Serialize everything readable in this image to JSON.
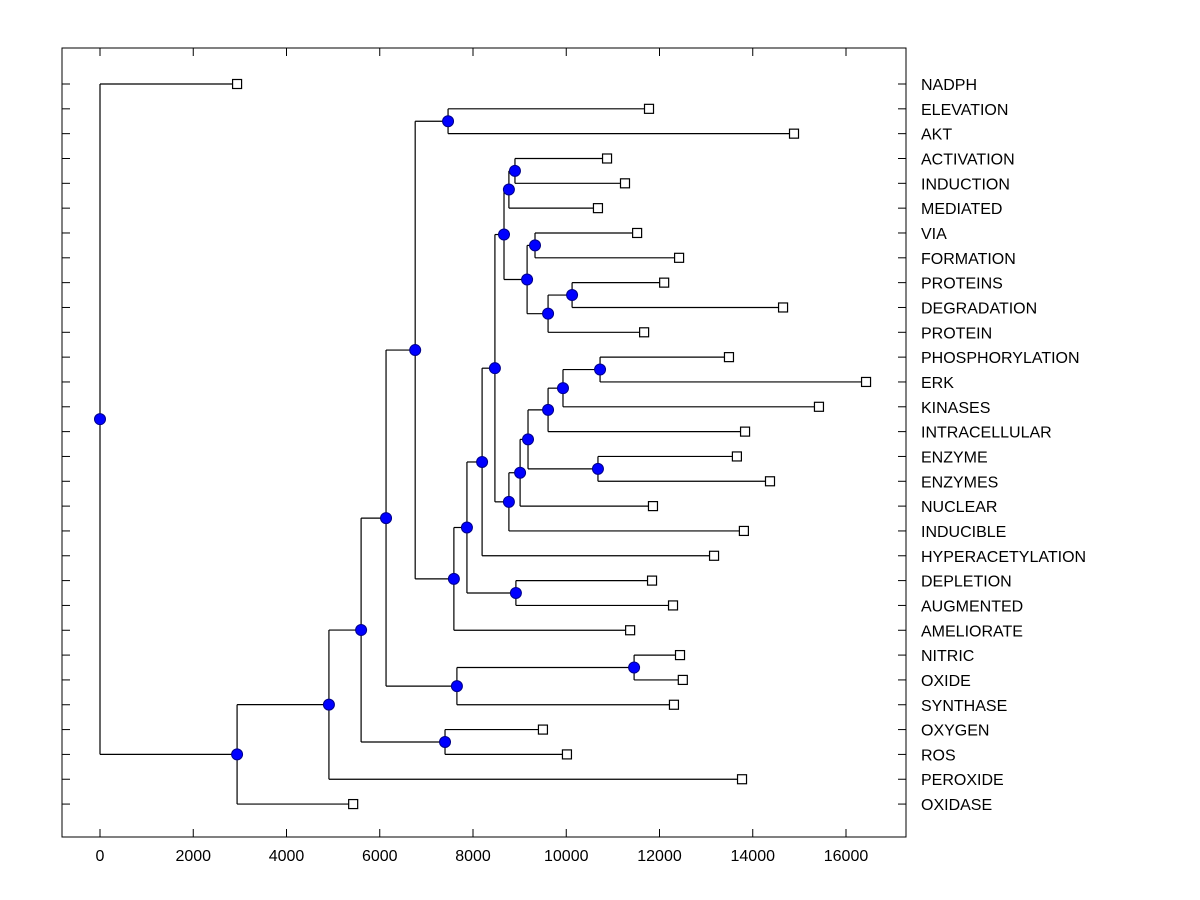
{
  "chart_data": {
    "type": "dendrogram",
    "title": "",
    "xlabel": "",
    "ylabel": "",
    "xlim": [
      -800,
      17300
    ],
    "x_ticks": [
      0,
      2000,
      4000,
      6000,
      8000,
      10000,
      12000,
      14000,
      16000
    ],
    "x_tick_labels": [
      "0",
      "2000",
      "4000",
      "6000",
      "8000",
      "10000",
      "12000",
      "14000",
      "16000"
    ],
    "grid": false,
    "leaf_label_position": "right",
    "colors": {
      "internal_node_fill": "#0000ff",
      "leaf_marker_fill": "#ffffff",
      "line": "#000000"
    },
    "leaves": [
      {
        "label": "NADPH",
        "x": 2940
      },
      {
        "label": "ELEVATION",
        "x": 11775
      },
      {
        "label": "AKT",
        "x": 14885
      },
      {
        "label": "ACTIVATION",
        "x": 10875
      },
      {
        "label": "INDUCTION",
        "x": 11260
      },
      {
        "label": "MEDIATED",
        "x": 10680
      },
      {
        "label": "VIA",
        "x": 11520
      },
      {
        "label": "FORMATION",
        "x": 12420
      },
      {
        "label": "PROTEINS",
        "x": 12100
      },
      {
        "label": "DEGRADATION",
        "x": 14650
      },
      {
        "label": "PROTEIN",
        "x": 11670
      },
      {
        "label": "PHOSPHORYLATION",
        "x": 13490
      },
      {
        "label": "ERK",
        "x": 16430
      },
      {
        "label": "KINASES",
        "x": 15420
      },
      {
        "label": "INTRACELLULAR",
        "x": 13835
      },
      {
        "label": "ENZYME",
        "x": 13660
      },
      {
        "label": "ENZYMES",
        "x": 14370
      },
      {
        "label": "NUCLEAR",
        "x": 11860
      },
      {
        "label": "INDUCIBLE",
        "x": 13810
      },
      {
        "label": "HYPERACETYLATION",
        "x": 13170
      },
      {
        "label": "DEPLETION",
        "x": 11840
      },
      {
        "label": "AUGMENTED",
        "x": 12290
      },
      {
        "label": "AMELIORATE",
        "x": 11370
      },
      {
        "label": "NITRIC",
        "x": 12440
      },
      {
        "label": "OXIDE",
        "x": 12500
      },
      {
        "label": "SYNTHASE",
        "x": 12310
      },
      {
        "label": "OXYGEN",
        "x": 9500
      },
      {
        "label": "ROS",
        "x": 10015
      },
      {
        "label": "PEROXIDE",
        "x": 13770
      },
      {
        "label": "OXIDASE",
        "x": 5430
      }
    ],
    "nodes": [
      {
        "id": "n_act_ind",
        "x": 8900,
        "children": [
          "L3",
          "L4"
        ]
      },
      {
        "id": "n_act_med",
        "x": 8770,
        "children": [
          "n_act_ind",
          "L5"
        ]
      },
      {
        "id": "n_via_form",
        "x": 9330,
        "children": [
          "L6",
          "L7"
        ]
      },
      {
        "id": "n_prot_deg",
        "x": 10125,
        "children": [
          "L8",
          "L9"
        ]
      },
      {
        "id": "n_prot3",
        "x": 9610,
        "children": [
          "n_prot_deg",
          "L10"
        ]
      },
      {
        "id": "n_via_prot",
        "x": 9160,
        "children": [
          "n_via_form",
          "n_prot3"
        ]
      },
      {
        "id": "n_act_block",
        "x": 8665,
        "children": [
          "n_act_med",
          "n_via_prot"
        ]
      },
      {
        "id": "n_phos_erk",
        "x": 10725,
        "children": [
          "L11",
          "L12"
        ]
      },
      {
        "id": "n_kin",
        "x": 9930,
        "children": [
          "n_phos_erk",
          "L13"
        ]
      },
      {
        "id": "n_intra",
        "x": 9610,
        "children": [
          "n_kin",
          "L14"
        ]
      },
      {
        "id": "n_enz",
        "x": 10680,
        "children": [
          "L15",
          "L16"
        ]
      },
      {
        "id": "n_intra_enz",
        "x": 9180,
        "children": [
          "n_intra",
          "n_enz"
        ]
      },
      {
        "id": "n_nuc",
        "x": 9010,
        "children": [
          "n_intra_enz",
          "L17"
        ]
      },
      {
        "id": "n_induc",
        "x": 8770,
        "children": [
          "n_nuc",
          "L18"
        ]
      },
      {
        "id": "n_mid",
        "x": 8470,
        "children": [
          "n_act_block",
          "n_induc"
        ]
      },
      {
        "id": "n_hyper",
        "x": 8195,
        "children": [
          "n_mid",
          "L19"
        ]
      },
      {
        "id": "n_depl_aug",
        "x": 8920,
        "children": [
          "L20",
          "L21"
        ]
      },
      {
        "id": "n_hyper_depl",
        "x": 7870,
        "children": [
          "n_hyper",
          "n_depl_aug"
        ]
      },
      {
        "id": "n_amel",
        "x": 7590,
        "children": [
          "n_hyper_depl",
          "L22"
        ]
      },
      {
        "id": "n_elev_akt",
        "x": 7465,
        "children": [
          "L1",
          "L2"
        ]
      },
      {
        "id": "n_upper",
        "x": 6760,
        "children": [
          "n_elev_akt",
          "n_amel"
        ]
      },
      {
        "id": "n_nit_ox",
        "x": 11455,
        "children": [
          "L23",
          "L24"
        ]
      },
      {
        "id": "n_synth",
        "x": 7655,
        "children": [
          "n_nit_ox",
          "L25"
        ]
      },
      {
        "id": "n_upper_synth",
        "x": 6135,
        "children": [
          "n_upper",
          "n_synth"
        ]
      },
      {
        "id": "n_oxy_ros",
        "x": 7400,
        "children": [
          "L26",
          "L27"
        ]
      },
      {
        "id": "n_oxyros_join",
        "x": 5600,
        "children": [
          "n_upper_synth",
          "n_oxy_ros"
        ]
      },
      {
        "id": "n_perox",
        "x": 4910,
        "children": [
          "n_oxyros_join",
          "L28"
        ]
      },
      {
        "id": "n_oxidase",
        "x": 2940,
        "children": [
          "n_perox",
          "L29"
        ]
      },
      {
        "id": "root",
        "x": 0,
        "children": [
          "L0",
          "n_oxidase"
        ]
      }
    ]
  }
}
